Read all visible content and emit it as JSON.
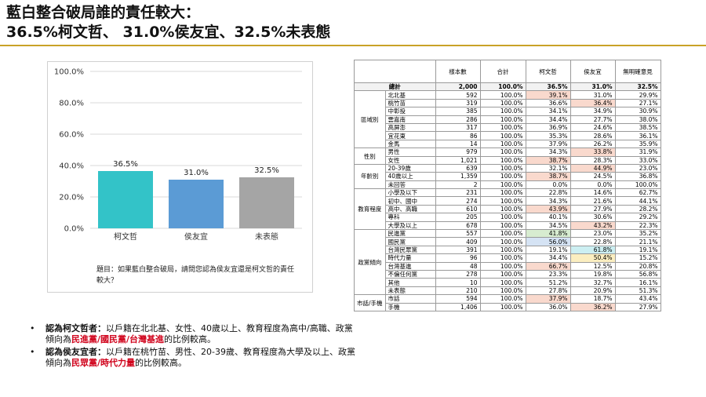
{
  "title": {
    "line1": "藍白整合破局誰的責任較大：",
    "line2": "36.5%柯文哲、 31.0%侯友宜、32.5%未表態"
  },
  "colors": {
    "ko": "#33c3c8",
    "hou": "#5b9bd5",
    "none": "#a5a5a5",
    "accent": "#c9a227"
  },
  "chart_data": {
    "type": "bar",
    "categories": [
      "柯文哲",
      "侯友宜",
      "未表態"
    ],
    "values": [
      36.5,
      31.0,
      32.5
    ],
    "value_labels": [
      "36.5%",
      "31.0%",
      "32.5%"
    ],
    "ylim": [
      0,
      100
    ],
    "yticks": [
      0,
      20,
      40,
      60,
      80,
      100
    ],
    "ytick_labels": [
      "0.0%",
      "20.0%",
      "40.0%",
      "60.0%",
      "80.0%",
      "100.0%"
    ],
    "grid": true,
    "question": "題目：如果藍白整合破局，請問您認為侯友宜還是柯文哲的責任較大？"
  },
  "bullets": [
    {
      "lead": "認為柯文哲者：",
      "pre": "以戶籍在北北基、女性、40歲以上、教育程度為高中/高職、政黨傾向為",
      "red": "民進黨/國民黨/台灣基進",
      "post": "的比例較高。"
    },
    {
      "lead": "認為侯友宜者：",
      "pre": "以戶籍在桃竹苗、男性、20-39歲、教育程度為大學及以上、政黨傾向為",
      "red": "民眾黨/時代力量",
      "post": "的比例較高。"
    }
  ],
  "table": {
    "headers": [
      "樣本數",
      "合計",
      "柯文哲",
      "侯友宜",
      "無明確意見"
    ],
    "total": {
      "label": "總計",
      "values": [
        "2,000",
        "100.0%",
        "36.5%",
        "31.0%",
        "32.5%"
      ]
    },
    "groups": [
      {
        "name": "區域別",
        "rows": [
          {
            "label": "北北基",
            "values": [
              "592",
              "100.0%",
              "39.1%",
              "31.0%",
              "29.9%"
            ],
            "hl": [
              "",
              "",
              "hl-red",
              "",
              ""
            ]
          },
          {
            "label": "桃竹苗",
            "values": [
              "319",
              "100.0%",
              "36.6%",
              "36.4%",
              "27.1%"
            ],
            "hl": [
              "",
              "",
              "",
              "hl-red",
              ""
            ]
          },
          {
            "label": "中彰投",
            "values": [
              "385",
              "100.0%",
              "34.1%",
              "34.9%",
              "30.9%"
            ],
            "hl": [
              "",
              "",
              "",
              "",
              ""
            ]
          },
          {
            "label": "雲嘉南",
            "values": [
              "286",
              "100.0%",
              "34.4%",
              "27.7%",
              "38.0%"
            ],
            "hl": [
              "",
              "",
              "",
              "",
              ""
            ]
          },
          {
            "label": "高屏澎",
            "values": [
              "317",
              "100.0%",
              "36.9%",
              "24.6%",
              "38.5%"
            ],
            "hl": [
              "",
              "",
              "",
              "",
              ""
            ]
          },
          {
            "label": "宜花東",
            "values": [
              "86",
              "100.0%",
              "35.3%",
              "28.6%",
              "36.1%"
            ],
            "hl": [
              "",
              "",
              "",
              "",
              ""
            ]
          },
          {
            "label": "金馬",
            "values": [
              "14",
              "100.0%",
              "37.9%",
              "26.2%",
              "35.9%"
            ],
            "hl": [
              "",
              "",
              "",
              "",
              ""
            ]
          }
        ]
      },
      {
        "name": "性別",
        "rows": [
          {
            "label": "男性",
            "values": [
              "979",
              "100.0%",
              "34.3%",
              "33.8%",
              "31.9%"
            ],
            "hl": [
              "",
              "",
              "",
              "hl-red",
              ""
            ]
          },
          {
            "label": "女性",
            "values": [
              "1,021",
              "100.0%",
              "38.7%",
              "28.3%",
              "33.0%"
            ],
            "hl": [
              "",
              "",
              "hl-red",
              "",
              ""
            ]
          }
        ]
      },
      {
        "name": "年齡別",
        "rows": [
          {
            "label": "20-39歲",
            "values": [
              "639",
              "100.0%",
              "32.1%",
              "44.9%",
              "23.0%"
            ],
            "hl": [
              "",
              "",
              "",
              "hl-red",
              ""
            ]
          },
          {
            "label": "40歲以上",
            "values": [
              "1,359",
              "100.0%",
              "38.7%",
              "24.5%",
              "36.8%"
            ],
            "hl": [
              "",
              "",
              "hl-red",
              "",
              ""
            ]
          },
          {
            "label": "未回答",
            "values": [
              "2",
              "100.0%",
              "0.0%",
              "0.0%",
              "100.0%"
            ],
            "hl": [
              "",
              "",
              "",
              "",
              ""
            ]
          }
        ]
      },
      {
        "name": "教育程度",
        "rows": [
          {
            "label": "小學及以下",
            "values": [
              "231",
              "100.0%",
              "22.8%",
              "14.6%",
              "62.7%"
            ],
            "hl": [
              "",
              "",
              "",
              "",
              ""
            ]
          },
          {
            "label": "初中、國中",
            "values": [
              "274",
              "100.0%",
              "34.3%",
              "21.6%",
              "44.1%"
            ],
            "hl": [
              "",
              "",
              "",
              "",
              ""
            ]
          },
          {
            "label": "高中、高職",
            "values": [
              "610",
              "100.0%",
              "43.9%",
              "27.9%",
              "28.2%"
            ],
            "hl": [
              "",
              "",
              "hl-red",
              "",
              ""
            ]
          },
          {
            "label": "專科",
            "values": [
              "205",
              "100.0%",
              "40.1%",
              "30.6%",
              "29.2%"
            ],
            "hl": [
              "",
              "",
              "",
              "",
              ""
            ]
          },
          {
            "label": "大學及以上",
            "values": [
              "678",
              "100.0%",
              "34.5%",
              "43.2%",
              "22.3%"
            ],
            "hl": [
              "",
              "",
              "",
              "hl-red",
              ""
            ]
          }
        ]
      },
      {
        "name": "政黨傾向",
        "rows": [
          {
            "label": "民進黨",
            "values": [
              "557",
              "100.0%",
              "41.8%",
              "23.0%",
              "35.2%"
            ],
            "hl": [
              "",
              "",
              "hl-green",
              "",
              ""
            ]
          },
          {
            "label": "國民黨",
            "values": [
              "409",
              "100.0%",
              "56.0%",
              "22.8%",
              "21.1%"
            ],
            "hl": [
              "",
              "",
              "hl-blue",
              "",
              ""
            ]
          },
          {
            "label": "台灣民眾黨",
            "values": [
              "391",
              "100.0%",
              "19.1%",
              "61.8%",
              "19.1%"
            ],
            "hl": [
              "",
              "",
              "",
              "hl-teal",
              ""
            ]
          },
          {
            "label": "時代力量",
            "values": [
              "96",
              "100.0%",
              "34.4%",
              "50.4%",
              "15.2%"
            ],
            "hl": [
              "",
              "",
              "",
              "hl-yellow",
              ""
            ]
          },
          {
            "label": "台灣基進",
            "values": [
              "48",
              "100.0%",
              "66.7%",
              "12.5%",
              "20.8%"
            ],
            "hl": [
              "",
              "",
              "hl-red",
              "",
              ""
            ]
          },
          {
            "label": "不偏任何黨",
            "values": [
              "278",
              "100.0%",
              "23.3%",
              "19.8%",
              "56.8%"
            ],
            "hl": [
              "",
              "",
              "",
              "",
              ""
            ]
          },
          {
            "label": "其他",
            "values": [
              "10",
              "100.0%",
              "51.2%",
              "32.7%",
              "16.1%"
            ],
            "hl": [
              "",
              "",
              "",
              "",
              ""
            ]
          },
          {
            "label": "未表態",
            "values": [
              "210",
              "100.0%",
              "27.8%",
              "20.9%",
              "51.3%"
            ],
            "hl": [
              "",
              "",
              "",
              "",
              ""
            ]
          }
        ]
      },
      {
        "name": "市話/手機",
        "rows": [
          {
            "label": "市話",
            "values": [
              "594",
              "100.0%",
              "37.9%",
              "18.7%",
              "43.4%"
            ],
            "hl": [
              "",
              "",
              "hl-red",
              "",
              ""
            ]
          },
          {
            "label": "手機",
            "values": [
              "1,406",
              "100.0%",
              "36.0%",
              "36.2%",
              "27.9%"
            ],
            "hl": [
              "",
              "",
              "",
              "hl-red",
              ""
            ]
          }
        ]
      }
    ]
  }
}
